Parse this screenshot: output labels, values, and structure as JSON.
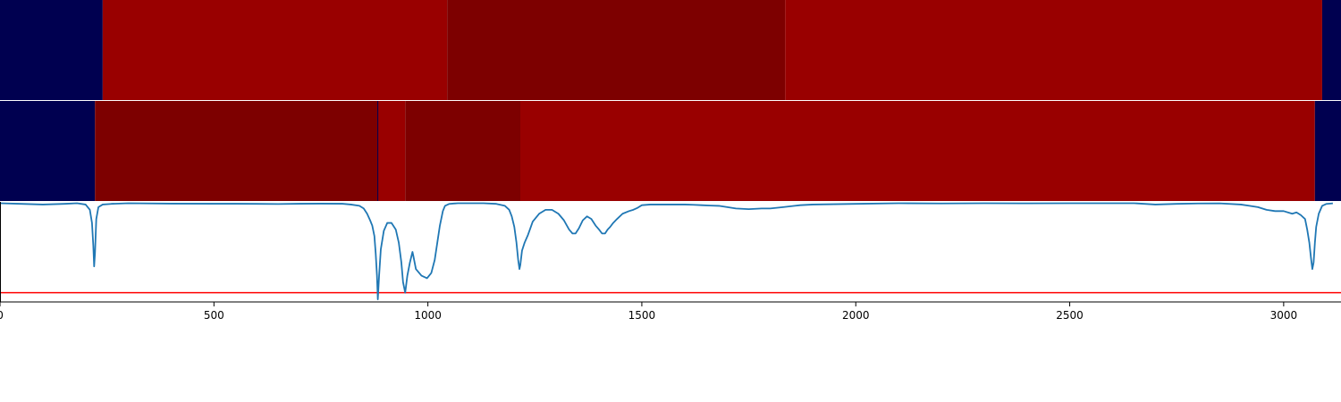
{
  "chart_data": {
    "type": "heatmap",
    "xlim": [
      0,
      3134
    ],
    "x_ticks": [
      0,
      500,
      1000,
      1500,
      2000,
      2500,
      3000
    ],
    "x_tick_labels": [
      "0",
      "500",
      "1000",
      "1500",
      "2000",
      "2500",
      "3000"
    ],
    "colors": {
      "navy": "#000050",
      "red": "#990000",
      "dark_red": "#7d0000",
      "line": "#1f77b4",
      "threshold": "#ff0000",
      "divider": "#000050"
    },
    "heatmap_rows": [
      {
        "segments": [
          {
            "start": 0,
            "end": 240,
            "color": "navy"
          },
          {
            "start": 240,
            "end": 1045,
            "color": "red"
          },
          {
            "start": 1045,
            "end": 1835,
            "color": "dark_red"
          },
          {
            "start": 1835,
            "end": 3090,
            "color": "red"
          },
          {
            "start": 3090,
            "end": 3134,
            "color": "navy"
          }
        ]
      },
      {
        "segments": [
          {
            "start": 0,
            "end": 222,
            "color": "navy"
          },
          {
            "start": 222,
            "end": 883,
            "color": "dark_red"
          },
          {
            "start": 883,
            "end": 947,
            "color": "red"
          },
          {
            "start": 947,
            "end": 1216,
            "color": "dark_red"
          },
          {
            "start": 1216,
            "end": 3073,
            "color": "red"
          },
          {
            "start": 3073,
            "end": 3134,
            "color": "navy"
          }
        ],
        "dividers": [
          883
        ]
      }
    ],
    "line_ylim": [
      -0.75,
      0.01
    ],
    "threshold": -0.68,
    "line": {
      "x": [
        0,
        50,
        100,
        150,
        180,
        200,
        210,
        215,
        218,
        220,
        222,
        225,
        230,
        240,
        260,
        300,
        400,
        500,
        550,
        600,
        650,
        700,
        750,
        800,
        820,
        840,
        850,
        858,
        865,
        870,
        875,
        878,
        881,
        883,
        886,
        890,
        897,
        905,
        915,
        925,
        932,
        938,
        942,
        947,
        952,
        958,
        964,
        966,
        972,
        985,
        998,
        1008,
        1016,
        1022,
        1028,
        1035,
        1040,
        1050,
        1070,
        1100,
        1130,
        1160,
        1180,
        1190,
        1196,
        1202,
        1207,
        1211,
        1214,
        1216,
        1220,
        1226,
        1234,
        1245,
        1260,
        1275,
        1290,
        1305,
        1318,
        1330,
        1338,
        1345,
        1353,
        1362,
        1372,
        1382,
        1392,
        1400,
        1407,
        1414,
        1420,
        1426,
        1433,
        1442,
        1455,
        1470,
        1480,
        1490,
        1500,
        1520,
        1540,
        1560,
        1580,
        1600,
        1620,
        1640,
        1660,
        1680,
        1700,
        1720,
        1750,
        1780,
        1800,
        1830,
        1870,
        1900,
        2000,
        2100,
        2200,
        2300,
        2400,
        2500,
        2600,
        2650,
        2700,
        2750,
        2800,
        2850,
        2900,
        2920,
        2940,
        2960,
        2980,
        3000,
        3020,
        3030,
        3040,
        3050,
        3055,
        3060,
        3064,
        3067,
        3070,
        3073,
        3076,
        3082,
        3090,
        3100,
        3115,
        3134
      ],
      "y": [
        0,
        -0.005,
        -0.01,
        -0.005,
        0,
        -0.01,
        -0.05,
        -0.15,
        -0.32,
        -0.48,
        -0.38,
        -0.12,
        -0.03,
        -0.01,
        -0.005,
        0,
        -0.003,
        -0.004,
        -0.004,
        -0.005,
        -0.006,
        -0.004,
        -0.003,
        -0.004,
        -0.01,
        -0.02,
        -0.04,
        -0.08,
        -0.13,
        -0.17,
        -0.25,
        -0.38,
        -0.55,
        -0.73,
        -0.55,
        -0.35,
        -0.21,
        -0.15,
        -0.15,
        -0.2,
        -0.3,
        -0.45,
        -0.6,
        -0.68,
        -0.55,
        -0.45,
        -0.37,
        -0.4,
        -0.5,
        -0.55,
        -0.57,
        -0.53,
        -0.43,
        -0.3,
        -0.17,
        -0.06,
        -0.02,
        -0.005,
        0,
        0,
        0,
        -0.005,
        -0.02,
        -0.05,
        -0.1,
        -0.18,
        -0.3,
        -0.43,
        -0.5,
        -0.47,
        -0.36,
        -0.3,
        -0.24,
        -0.14,
        -0.08,
        -0.05,
        -0.05,
        -0.08,
        -0.13,
        -0.2,
        -0.23,
        -0.23,
        -0.19,
        -0.13,
        -0.1,
        -0.12,
        -0.17,
        -0.2,
        -0.23,
        -0.23,
        -0.2,
        -0.18,
        -0.15,
        -0.12,
        -0.08,
        -0.06,
        -0.05,
        -0.035,
        -0.015,
        -0.01,
        -0.01,
        -0.01,
        -0.01,
        -0.01,
        -0.012,
        -0.015,
        -0.018,
        -0.02,
        -0.03,
        -0.04,
        -0.045,
        -0.04,
        -0.04,
        -0.03,
        -0.015,
        -0.01,
        -0.005,
        0,
        -0.002,
        0,
        -0.001,
        0,
        0,
        0,
        -0.01,
        -0.005,
        -0.002,
        -0.001,
        -0.01,
        -0.02,
        -0.03,
        -0.05,
        -0.06,
        -0.06,
        -0.08,
        -0.07,
        -0.09,
        -0.12,
        -0.2,
        -0.3,
        -0.42,
        -0.5,
        -0.45,
        -0.3,
        -0.18,
        -0.08,
        -0.02,
        -0.005,
        -0.001
      ]
    }
  }
}
